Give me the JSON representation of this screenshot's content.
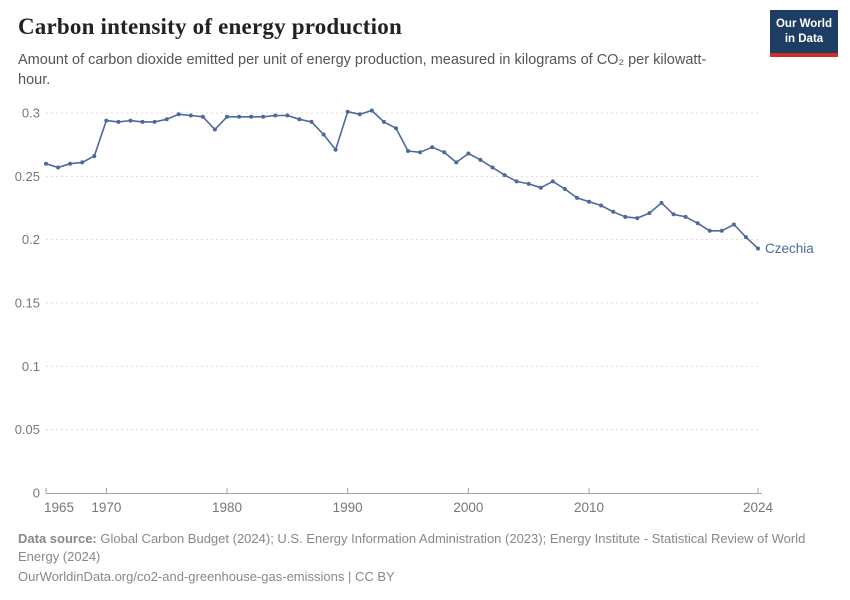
{
  "header": {
    "title": "Carbon intensity of energy production",
    "subtitle": "Amount of carbon dioxide emitted per unit of energy production, measured in kilograms of CO₂ per kilowatt-hour.",
    "logo": {
      "line1": "Our World",
      "line2": "in Data"
    }
  },
  "colors": {
    "series_blue": "#4c6a9c",
    "logo_navy": "#1d3d63",
    "logo_red": "#cf2e23",
    "gridline": "#dcdcdc",
    "axis": "#a3a3a3",
    "tick_label": "#777777"
  },
  "chart_data": {
    "type": "line",
    "title": "Carbon intensity of energy production",
    "xlabel": "",
    "ylabel": "kg CO₂ per kilowatt-hour",
    "xlim": [
      1965,
      2024
    ],
    "ylim": [
      0,
      0.3
    ],
    "grid": "horizontal-dashed",
    "legend_position": "end-of-line-label",
    "x_ticks": [
      1965,
      1970,
      1980,
      1990,
      2000,
      2010,
      2024
    ],
    "y_ticks": [
      0,
      0.05,
      0.1,
      0.15,
      0.2,
      0.25,
      0.3
    ],
    "end_label": "Czechia",
    "series": [
      {
        "name": "Czechia",
        "color": "#4c6a9c",
        "x": [
          1965,
          1966,
          1967,
          1968,
          1969,
          1970,
          1971,
          1972,
          1973,
          1974,
          1975,
          1976,
          1977,
          1978,
          1979,
          1980,
          1981,
          1982,
          1983,
          1984,
          1985,
          1986,
          1987,
          1988,
          1989,
          1990,
          1991,
          1992,
          1993,
          1994,
          1995,
          1996,
          1997,
          1998,
          1999,
          2000,
          2001,
          2002,
          2003,
          2004,
          2005,
          2006,
          2007,
          2008,
          2009,
          2010,
          2011,
          2012,
          2013,
          2014,
          2015,
          2016,
          2017,
          2018,
          2019,
          2020,
          2021,
          2022,
          2023,
          2024
        ],
        "values": [
          0.26,
          0.257,
          0.26,
          0.261,
          0.266,
          0.294,
          0.293,
          0.294,
          0.293,
          0.293,
          0.295,
          0.299,
          0.298,
          0.297,
          0.287,
          0.297,
          0.297,
          0.297,
          0.297,
          0.298,
          0.298,
          0.295,
          0.293,
          0.283,
          0.271,
          0.301,
          0.299,
          0.302,
          0.293,
          0.288,
          0.27,
          0.269,
          0.273,
          0.269,
          0.261,
          0.268,
          0.263,
          0.257,
          0.251,
          0.246,
          0.244,
          0.241,
          0.246,
          0.24,
          0.233,
          0.23,
          0.227,
          0.222,
          0.218,
          0.217,
          0.221,
          0.229,
          0.22,
          0.218,
          0.213,
          0.207,
          0.207,
          0.212,
          0.202,
          0.193
        ]
      }
    ]
  },
  "footer": {
    "source_label": "Data source:",
    "source_text": " Global Carbon Budget (2024); U.S. Energy Information Administration (2023); Energy Institute - Statistical Review of World Energy (2024)",
    "url_line": "OurWorldinData.org/co2-and-greenhouse-gas-emissions | CC BY"
  }
}
